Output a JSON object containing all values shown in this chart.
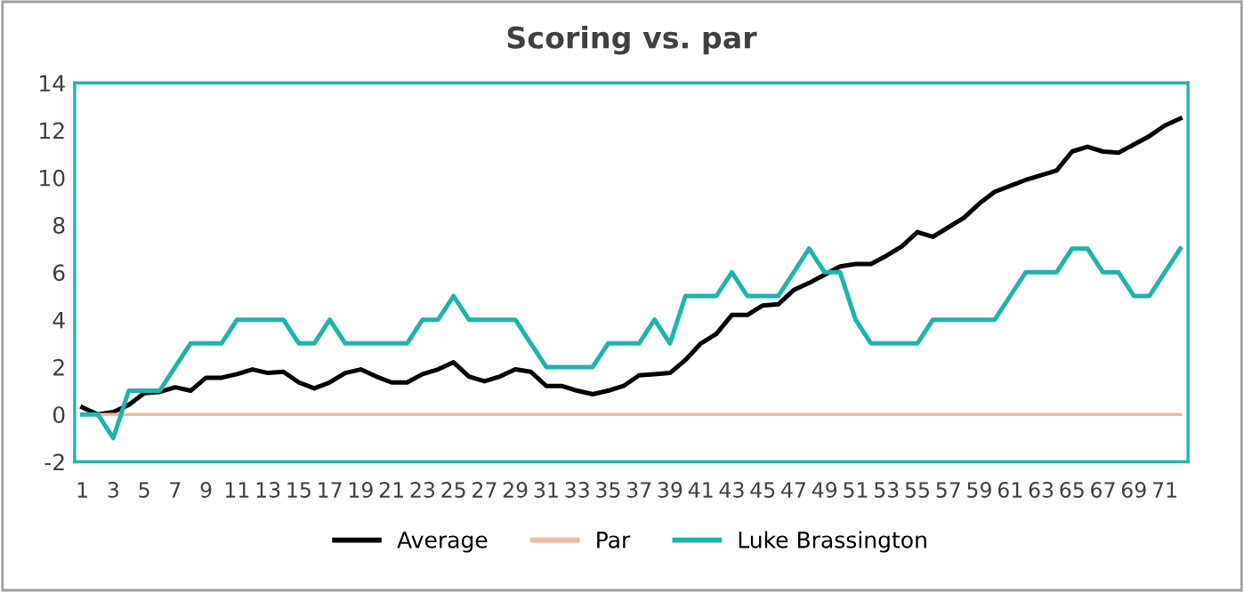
{
  "chart_data": {
    "type": "line",
    "title": "Scoring vs. par",
    "categories": [
      "1",
      null,
      "3",
      null,
      "5",
      null,
      "7",
      null,
      "9",
      null,
      "11",
      null,
      "13",
      null,
      "15",
      null,
      "17",
      null,
      "19",
      null,
      "21",
      null,
      "23",
      null,
      "25",
      null,
      "27",
      null,
      "29",
      null,
      "31",
      null,
      "33",
      null,
      "35",
      null,
      "37",
      null,
      "39",
      null,
      "41",
      null,
      "43",
      null,
      "45",
      null,
      "47",
      null,
      "49",
      null,
      "51",
      null,
      "53",
      null,
      "55",
      null,
      "57",
      null,
      "59",
      null,
      "61",
      null,
      "63",
      null,
      "65",
      null,
      "67",
      null,
      "69",
      null,
      "71",
      null
    ],
    "series": [
      {
        "name": "Average",
        "color": "#000000",
        "values": [
          0.3,
          0.0,
          0.1,
          0.4,
          0.9,
          0.95,
          1.15,
          1.0,
          1.55,
          1.55,
          1.7,
          1.9,
          1.75,
          1.8,
          1.35,
          1.1,
          1.35,
          1.75,
          1.9,
          1.6,
          1.35,
          1.35,
          1.7,
          1.9,
          2.2,
          1.6,
          1.4,
          1.6,
          1.9,
          1.8,
          1.2,
          1.2,
          1.0,
          0.85,
          1.0,
          1.2,
          1.65,
          1.7,
          1.75,
          2.3,
          3.0,
          3.4,
          4.2,
          4.2,
          4.6,
          4.65,
          5.25,
          5.55,
          5.9,
          6.25,
          6.35,
          6.35,
          6.7,
          7.1,
          7.7,
          7.5,
          7.9,
          8.3,
          8.9,
          9.4,
          9.65,
          9.9,
          10.1,
          10.3,
          11.1,
          11.3,
          11.1,
          11.05,
          11.4,
          11.75,
          12.2,
          12.5
        ]
      },
      {
        "name": "Par",
        "color": "#f4b7a5",
        "values": [
          0,
          0,
          0,
          0,
          0,
          0,
          0,
          0,
          0,
          0,
          0,
          0,
          0,
          0,
          0,
          0,
          0,
          0,
          0,
          0,
          0,
          0,
          0,
          0,
          0,
          0,
          0,
          0,
          0,
          0,
          0,
          0,
          0,
          0,
          0,
          0,
          0,
          0,
          0,
          0,
          0,
          0,
          0,
          0,
          0,
          0,
          0,
          0,
          0,
          0,
          0,
          0,
          0,
          0,
          0,
          0,
          0,
          0,
          0,
          0,
          0,
          0,
          0,
          0,
          0,
          0,
          0,
          0,
          0,
          0,
          0,
          0
        ]
      },
      {
        "name": "Luke Brassington",
        "color": "#1fb3ad",
        "values": [
          0,
          0,
          -1,
          1,
          1,
          1,
          2,
          3,
          3,
          3,
          4,
          4,
          4,
          4,
          3,
          3,
          4,
          3,
          3,
          3,
          3,
          3,
          4,
          4,
          5,
          4,
          4,
          4,
          4,
          3,
          2,
          2,
          2,
          2,
          3,
          3,
          3,
          4,
          3,
          5,
          5,
          5,
          6,
          5,
          5,
          5,
          6,
          7,
          6,
          6,
          4,
          3,
          3,
          3,
          3,
          4,
          4,
          4,
          4,
          4,
          5,
          6,
          6,
          6,
          7,
          7,
          6,
          6,
          5,
          5,
          6,
          7
        ]
      }
    ],
    "ylim": [
      -2,
      14
    ],
    "yticks": [
      -2,
      0,
      2,
      4,
      6,
      8,
      10,
      12,
      14
    ],
    "grid": false,
    "legend": "bottom",
    "marker": "none",
    "line_style": "solid"
  }
}
